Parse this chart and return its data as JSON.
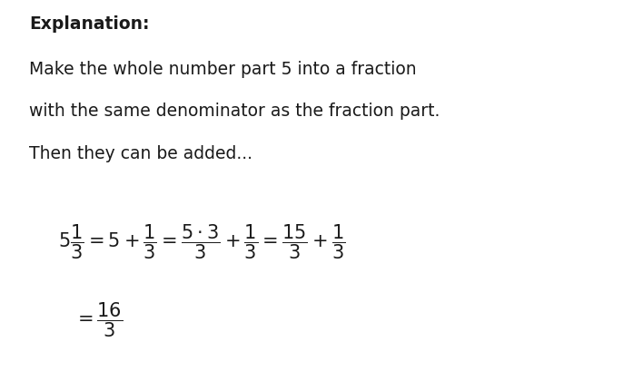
{
  "background_color": "#ffffff",
  "text_color": "#1a1a1a",
  "title_bold": "Explanation:",
  "line1": "Make the whole number part 5 into a fraction",
  "line2": "with the same denominator as the fraction part.",
  "line3": "Then they can be added...",
  "figsize": [
    7.08,
    4.2
  ],
  "dpi": 100,
  "text_fontsize": 13.5,
  "title_fontsize": 13.5,
  "math_fontsize": 15
}
